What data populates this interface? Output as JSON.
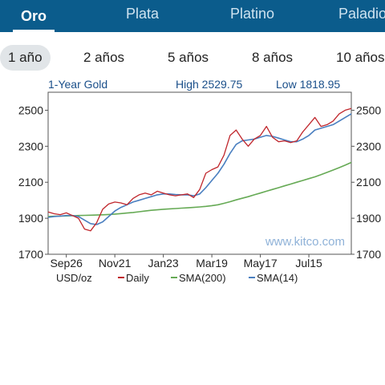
{
  "tabs": [
    {
      "label": "Oro",
      "active": true
    },
    {
      "label": "Plata",
      "active": false
    },
    {
      "label": "Platino",
      "active": false
    },
    {
      "label": "Paladio",
      "active": false
    }
  ],
  "periods": [
    {
      "label": "1 año",
      "active": true
    },
    {
      "label": "2 años",
      "active": false
    },
    {
      "label": "5 años",
      "active": false
    },
    {
      "label": "8 años",
      "active": false
    },
    {
      "label": "10 años",
      "active": false
    }
  ],
  "colors": {
    "tabbar": "#0b5c8c",
    "daily": "#c0262c",
    "sma200": "#66aa55",
    "sma14": "#4a7fc0",
    "header_text": "#1a4f8a",
    "watermark": "#8fb2d8"
  },
  "chart_data": {
    "type": "line",
    "title": "1-Year Gold",
    "high_label": "High 2529.75",
    "low_label": "Low 1818.95",
    "unit_label": "USD/oz",
    "watermark": "www.kitco.com",
    "ylim": [
      1700,
      2600
    ],
    "y_ticks": [
      1700,
      1900,
      2100,
      2300,
      2500
    ],
    "x_tick_labels": [
      "Sep26",
      "Nov21",
      "Jan23",
      "Mar19",
      "May17",
      "Jul15"
    ],
    "x_tick_index": [
      3,
      11,
      19,
      27,
      35,
      43
    ],
    "grid": false,
    "legend": "bottom",
    "series": [
      {
        "name": "Daily",
        "values": [
          1935,
          1925,
          1920,
          1930,
          1915,
          1900,
          1840,
          1830,
          1875,
          1950,
          1980,
          1990,
          1985,
          1975,
          2010,
          2030,
          2040,
          2030,
          2050,
          2040,
          2030,
          2025,
          2030,
          2035,
          2015,
          2060,
          2150,
          2170,
          2185,
          2250,
          2360,
          2390,
          2340,
          2300,
          2340,
          2360,
          2410,
          2350,
          2325,
          2330,
          2320,
          2330,
          2380,
          2420,
          2460,
          2410,
          2420,
          2440,
          2480,
          2500,
          2510
        ]
      },
      {
        "name": "SMA(200)",
        "values": [
          1910,
          1911,
          1912,
          1913,
          1914,
          1915,
          1916,
          1917,
          1918,
          1919,
          1921,
          1923,
          1926,
          1929,
          1932,
          1936,
          1940,
          1944,
          1947,
          1950,
          1952,
          1954,
          1956,
          1958,
          1960,
          1963,
          1966,
          1970,
          1975,
          1983,
          1992,
          2002,
          2011,
          2020,
          2030,
          2040,
          2050,
          2060,
          2070,
          2080,
          2090,
          2100,
          2110,
          2120,
          2130,
          2142,
          2155,
          2168,
          2181,
          2195,
          2210
        ]
      },
      {
        "name": "SMA(14)",
        "values": [
          1905,
          1910,
          1912,
          1915,
          1915,
          1910,
          1890,
          1870,
          1865,
          1880,
          1910,
          1940,
          1960,
          1975,
          1990,
          2000,
          2010,
          2020,
          2030,
          2035,
          2035,
          2032,
          2030,
          2030,
          2025,
          2035,
          2070,
          2110,
          2150,
          2200,
          2260,
          2310,
          2330,
          2335,
          2340,
          2350,
          2360,
          2355,
          2345,
          2335,
          2325,
          2325,
          2340,
          2360,
          2390,
          2400,
          2410,
          2420,
          2440,
          2460,
          2480
        ]
      }
    ]
  }
}
